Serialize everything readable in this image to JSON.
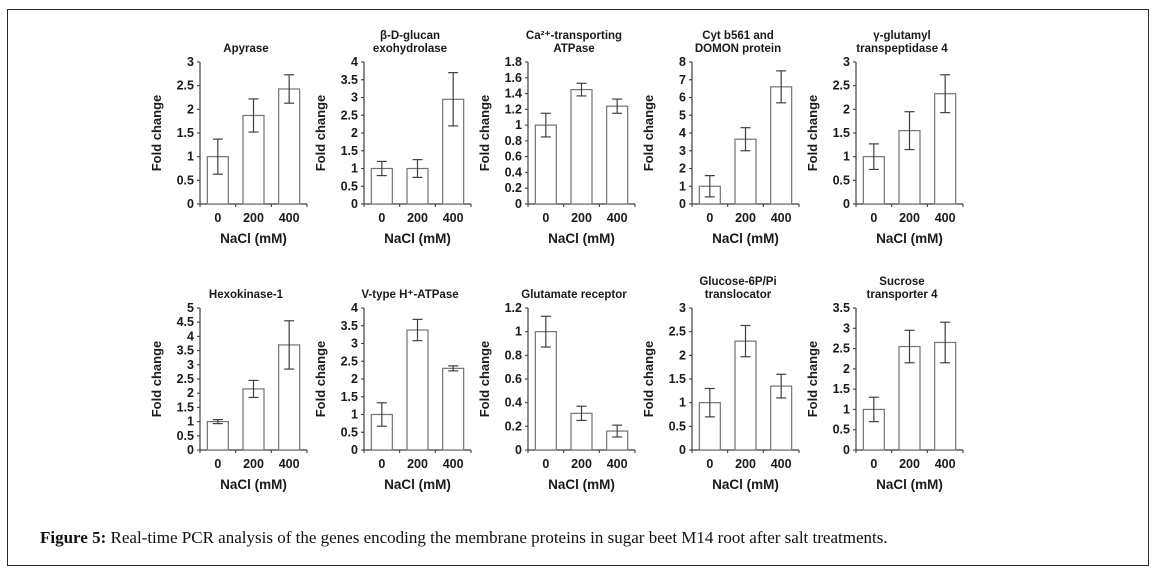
{
  "caption": {
    "label": "Figure 5:",
    "text": " Real-time PCR analysis of the genes encoding the membrane proteins in sugar beet M14 root after salt treatments."
  },
  "style_colors": {
    "axis": "#3f3f3f",
    "bar_stroke": "#737373",
    "bar_fill": "#ffffff",
    "error_bar": "#404040",
    "text": "#1a1a1a"
  },
  "chart_data": [
    {
      "id": "apyrase",
      "type": "bar",
      "title_lines": [
        "Apyrase"
      ],
      "xlabel": "NaCl (mM)",
      "ylabel": "Fold change",
      "categories": [
        "0",
        "200",
        "400"
      ],
      "values": [
        1.0,
        1.87,
        2.43
      ],
      "errors": [
        0.37,
        0.35,
        0.3
      ],
      "ylim": [
        0,
        3
      ],
      "yticks": [
        0,
        0.5,
        1,
        1.5,
        2,
        2.5,
        3
      ]
    },
    {
      "id": "beta-d-glucan-exohydrolase",
      "type": "bar",
      "title_lines": [
        "β-D-glucan",
        "exohydrolase"
      ],
      "xlabel": "NaCl (mM)",
      "ylabel": "Fold change",
      "categories": [
        "0",
        "200",
        "400"
      ],
      "values": [
        1.0,
        1.0,
        2.95
      ],
      "errors": [
        0.2,
        0.25,
        0.75
      ],
      "ylim": [
        0,
        4
      ],
      "yticks": [
        0,
        0.5,
        1,
        1.5,
        2,
        2.5,
        3,
        3.5,
        4
      ]
    },
    {
      "id": "ca-transporting-atpase",
      "type": "bar",
      "title_lines": [
        "Ca²⁺-transporting",
        "ATPase"
      ],
      "xlabel": "NaCl (mM)",
      "ylabel": "Fold change",
      "categories": [
        "0",
        "200",
        "400"
      ],
      "values": [
        1.0,
        1.45,
        1.24
      ],
      "errors": [
        0.15,
        0.08,
        0.09
      ],
      "ylim": [
        0,
        1.8
      ],
      "yticks": [
        0,
        0.2,
        0.4,
        0.6,
        0.8,
        1,
        1.2,
        1.4,
        1.6,
        1.8
      ]
    },
    {
      "id": "cyt-b561-domon-protein",
      "type": "bar",
      "title_lines": [
        "Cyt b561 and",
        "DOMON protein"
      ],
      "xlabel": "NaCl (mM)",
      "ylabel": "Fold change",
      "categories": [
        "0",
        "200",
        "400"
      ],
      "values": [
        1.0,
        3.65,
        6.6
      ],
      "errors": [
        0.6,
        0.65,
        0.9
      ],
      "ylim": [
        0,
        8
      ],
      "yticks": [
        0,
        1,
        2,
        3,
        4,
        5,
        6,
        7,
        8
      ]
    },
    {
      "id": "gamma-glutamyl-transpeptidase-4",
      "type": "bar",
      "title_lines": [
        "γ-glutamyl",
        "transpeptidase 4"
      ],
      "xlabel": "NaCl (mM)",
      "ylabel": "Fold change",
      "categories": [
        "0",
        "200",
        "400"
      ],
      "values": [
        1.0,
        1.55,
        2.33
      ],
      "errors": [
        0.27,
        0.4,
        0.4
      ],
      "ylim": [
        0,
        3
      ],
      "yticks": [
        0,
        0.5,
        1,
        1.5,
        2,
        2.5,
        3
      ]
    },
    {
      "id": "hexokinase-1",
      "type": "bar",
      "title_lines": [
        "Hexokinase-1"
      ],
      "xlabel": "NaCl (mM)",
      "ylabel": "Fold change",
      "categories": [
        "0",
        "200",
        "400"
      ],
      "values": [
        1.0,
        2.15,
        3.7
      ],
      "errors": [
        0.07,
        0.3,
        0.85
      ],
      "ylim": [
        0,
        5
      ],
      "yticks": [
        0,
        0.5,
        1,
        1.5,
        2,
        2.5,
        3,
        3.5,
        4,
        4.5,
        5
      ]
    },
    {
      "id": "v-type-h-atpase",
      "type": "bar",
      "title_lines": [
        "V-type H⁺-ATPase"
      ],
      "xlabel": "NaCl (mM)",
      "ylabel": "Fold change",
      "categories": [
        "0",
        "200",
        "400"
      ],
      "values": [
        1.0,
        3.38,
        2.3
      ],
      "errors": [
        0.33,
        0.3,
        0.07
      ],
      "ylim": [
        0,
        4
      ],
      "yticks": [
        0,
        0.5,
        1,
        1.5,
        2,
        2.5,
        3,
        3.5,
        4
      ]
    },
    {
      "id": "glutamate-receptor",
      "type": "bar",
      "title_lines": [
        "Glutamate receptor"
      ],
      "xlabel": "NaCl (mM)",
      "ylabel": "Fold change",
      "categories": [
        "0",
        "200",
        "400"
      ],
      "values": [
        1.0,
        0.31,
        0.16
      ],
      "errors": [
        0.13,
        0.06,
        0.05
      ],
      "ylim": [
        0,
        1.2
      ],
      "yticks": [
        0,
        0.2,
        0.4,
        0.6,
        0.8,
        1,
        1.2
      ]
    },
    {
      "id": "glucose-6p-pi-translocator",
      "type": "bar",
      "title_lines": [
        "Glucose-6P/Pi",
        "translocator"
      ],
      "xlabel": "NaCl (mM)",
      "ylabel": "Fold change",
      "categories": [
        "0",
        "200",
        "400"
      ],
      "values": [
        1.0,
        2.3,
        1.35
      ],
      "errors": [
        0.3,
        0.33,
        0.25
      ],
      "ylim": [
        0,
        3
      ],
      "yticks": [
        0,
        0.5,
        1,
        1.5,
        2,
        2.5,
        3
      ]
    },
    {
      "id": "sucrose-transporter-4",
      "type": "bar",
      "title_lines": [
        "Sucrose",
        "transporter 4"
      ],
      "xlabel": "NaCl (mM)",
      "ylabel": "Fold change",
      "categories": [
        "0",
        "200",
        "400"
      ],
      "values": [
        1.0,
        2.55,
        2.65
      ],
      "errors": [
        0.3,
        0.4,
        0.5
      ],
      "ylim": [
        0,
        3.5
      ],
      "yticks": [
        0,
        0.5,
        1,
        1.5,
        2,
        2.5,
        3,
        3.5
      ]
    }
  ]
}
